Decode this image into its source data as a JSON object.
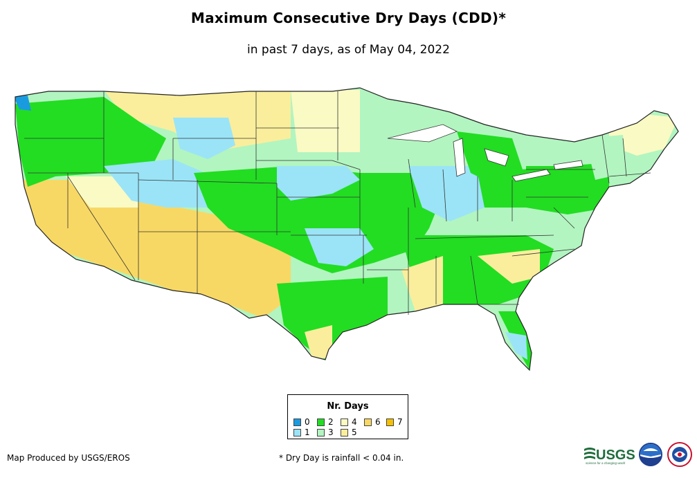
{
  "title": "Maximum Consecutive Dry Days (CDD)*",
  "subtitle": "in past 7 days, as of May 04, 2022",
  "legend": {
    "title": "Nr. Days",
    "items": [
      {
        "label": "0",
        "color": "#1a9be0"
      },
      {
        "label": "1",
        "color": "#9be4f7"
      },
      {
        "label": "2",
        "color": "#22dd22"
      },
      {
        "label": "3",
        "color": "#b2f5c0"
      },
      {
        "label": "4",
        "color": "#fafac4"
      },
      {
        "label": "5",
        "color": "#faee9c"
      },
      {
        "label": "6",
        "color": "#f8d864"
      },
      {
        "label": "7",
        "color": "#f5c000"
      }
    ]
  },
  "credit": "Map Produced by USGS/EROS",
  "footnote": "* Dry Day is rainfall < 0.04 in.",
  "logos": {
    "usgs": "USGS",
    "usgs_tagline": "science for a changing world"
  }
}
